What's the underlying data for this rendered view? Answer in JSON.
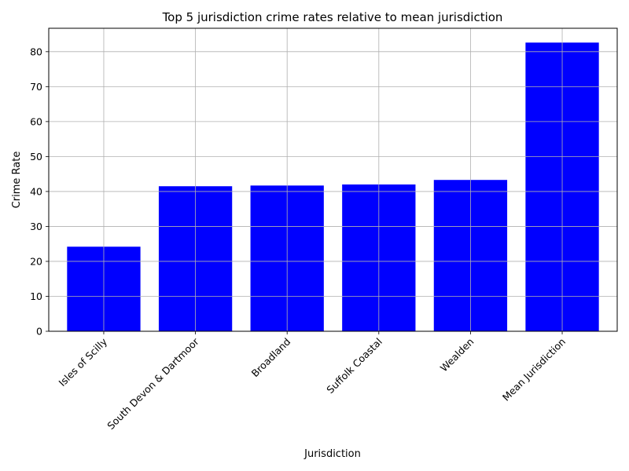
{
  "chart_data": {
    "type": "bar",
    "title": "Top 5 jurisdiction crime rates relative to mean jurisdiction",
    "xlabel": "Jurisdiction",
    "ylabel": "Crime Rate",
    "categories": [
      "Isles of Scilly",
      "South Devon & Dartmoor",
      "Broadland",
      "Suffolk Coastal",
      "Wealden",
      "Mean Jurisdiction"
    ],
    "values": [
      24.2,
      41.5,
      41.7,
      42.0,
      43.3,
      82.6
    ],
    "ylim": [
      0,
      86.7
    ],
    "yticks": [
      0,
      10,
      20,
      30,
      40,
      50,
      60,
      70,
      80
    ],
    "grid": true,
    "bar_color": "#0000ff",
    "grid_color": "#b0b0b0"
  }
}
